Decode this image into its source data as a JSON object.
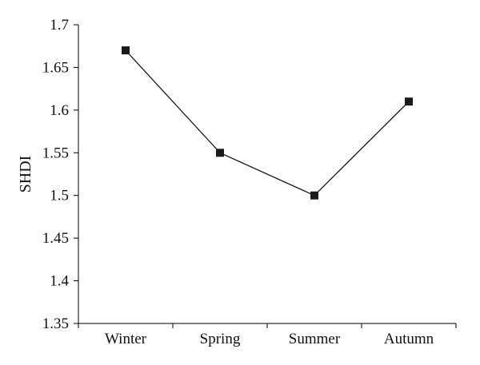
{
  "chart_data": {
    "type": "line",
    "title": "",
    "xlabel": "",
    "ylabel": "SHDI",
    "categories": [
      "Winter",
      "Spring",
      "Summer",
      "Autumn"
    ],
    "series": [
      {
        "values": [
          1.67,
          1.55,
          1.5,
          1.61
        ]
      }
    ],
    "ylim": [
      1.35,
      1.7
    ],
    "yticks": [
      "1.35",
      "1.4",
      "1.45",
      "1.5",
      "1.55",
      "1.6",
      "1.65",
      "1.7"
    ],
    "grid": false,
    "legend": "none",
    "marker": "square",
    "color": "#1a1a1a"
  }
}
